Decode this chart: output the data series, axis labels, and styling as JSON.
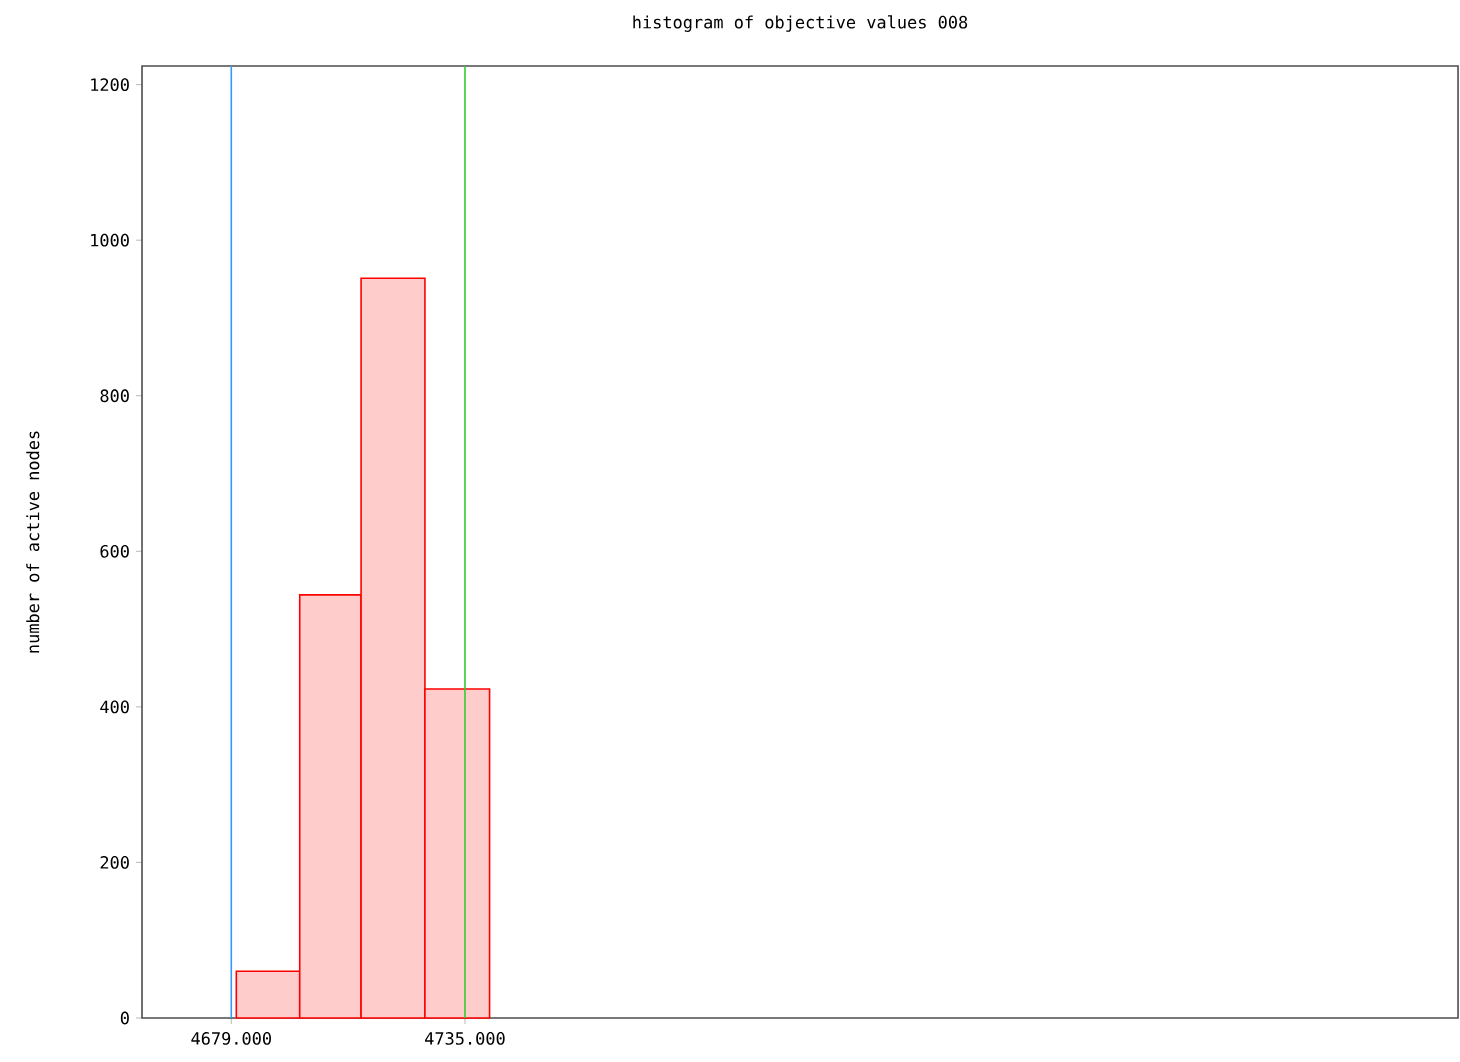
{
  "chart_data": {
    "type": "histogram",
    "title": "histogram of objective values 008",
    "ylabel": "number of active nodes",
    "bins": [
      4680.2,
      4695.4,
      4710.1,
      4725.4,
      4740.9
    ],
    "values": [
      60,
      544,
      951,
      423
    ],
    "color": "#ff0000",
    "xlim": [
      4657.6,
      4973
    ],
    "xticks": [
      {
        "value": 4679,
        "label": "4679.000"
      },
      {
        "value": 4735,
        "label": "4735.000"
      }
    ],
    "ylim": [
      0,
      1224
    ],
    "yticks": [
      0,
      200,
      400,
      600,
      800,
      1000,
      1200
    ],
    "ref_lines": [
      {
        "axis": "x",
        "value": 4679,
        "color": "#3399ff"
      },
      {
        "axis": "x",
        "value": 4735,
        "color": "#33cc33"
      }
    ]
  }
}
